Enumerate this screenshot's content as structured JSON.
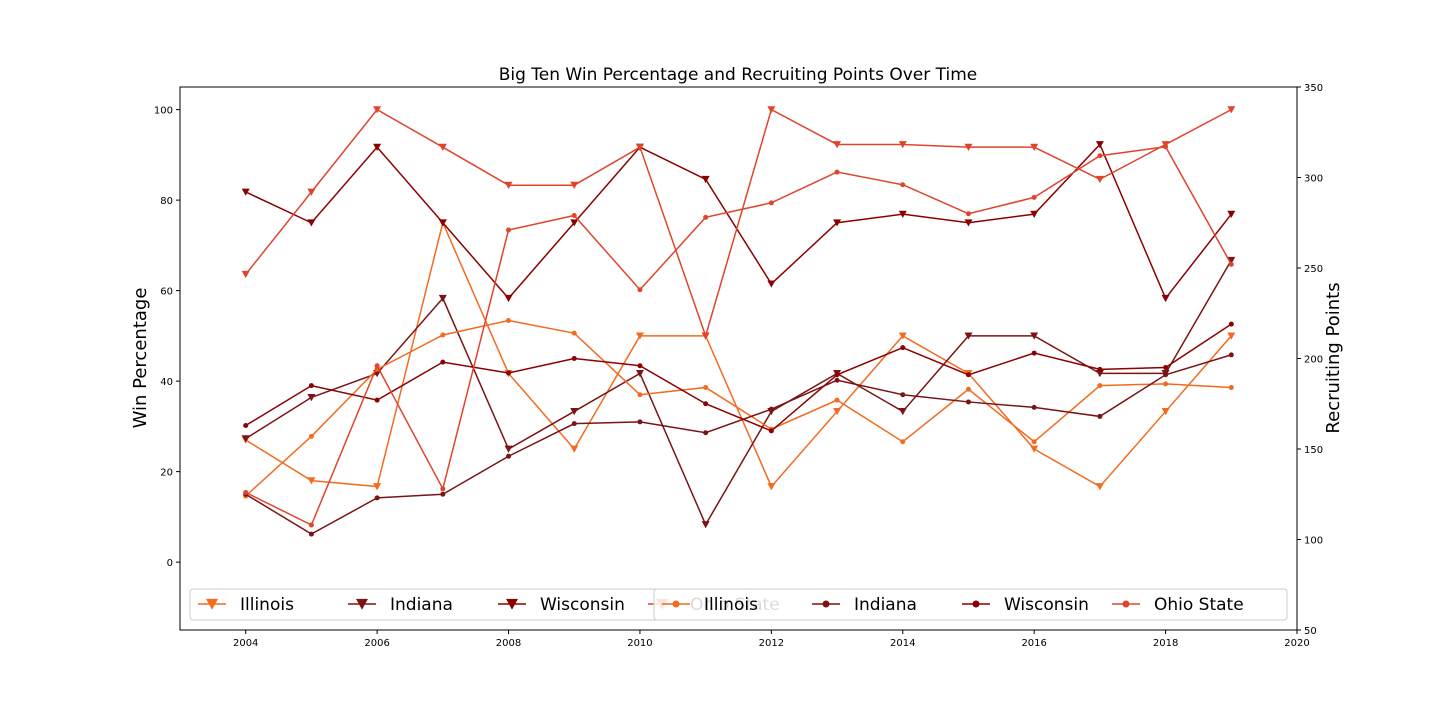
{
  "chart_data": {
    "type": "line",
    "title": "Big Ten Win Percentage and Recruiting Points Over Time",
    "xlabel": "",
    "ylabel_left": "Win Percentage",
    "ylabel_right": "Recruiting Points",
    "xlim": [
      2003,
      2020
    ],
    "ylim_left": [
      -15,
      105
    ],
    "ylim_right": [
      50,
      350
    ],
    "x_ticks": [
      2004,
      2006,
      2008,
      2010,
      2012,
      2014,
      2016,
      2018,
      2020
    ],
    "y_ticks_left": [
      0,
      20,
      40,
      60,
      80,
      100
    ],
    "y_ticks_right": [
      50,
      100,
      150,
      200,
      250,
      300,
      350
    ],
    "grid": false,
    "legend_left_placement": "lower-left",
    "legend_right_placement": "lower-right",
    "x": [
      2004,
      2005,
      2006,
      2007,
      2008,
      2009,
      2010,
      2011,
      2012,
      2013,
      2014,
      2015,
      2016,
      2017,
      2018,
      2019
    ],
    "win_series": [
      {
        "name": "Illinois",
        "color": "#f26b21",
        "values": [
          27,
          18,
          16.7,
          75,
          41.7,
          25,
          50,
          50,
          16.7,
          33.3,
          50,
          41.7,
          25,
          16.7,
          33.3,
          50
        ]
      },
      {
        "name": "Indiana",
        "color": "#7b1414",
        "values": [
          27.3,
          36.4,
          41.7,
          58.3,
          25,
          33.3,
          41.7,
          8.3,
          33.3,
          41.7,
          33.3,
          50,
          50,
          41.7,
          41.7,
          66.7
        ]
      },
      {
        "name": "Wisconsin",
        "color": "#8b0000",
        "values": [
          81.8,
          75,
          91.7,
          75,
          58.3,
          75,
          91.7,
          84.6,
          61.5,
          75,
          76.9,
          75,
          76.9,
          92.3,
          58.3,
          76.9
        ]
      },
      {
        "name": "Ohio State",
        "color": "#e0452c",
        "values": [
          63.6,
          81.8,
          100,
          91.7,
          83.3,
          83.3,
          91.7,
          50,
          100,
          92.3,
          92.3,
          91.7,
          91.7,
          84.6,
          92.3,
          100
        ]
      }
    ],
    "recruiting_series": [
      {
        "name": "Illinois",
        "color": "#f26b21",
        "values": [
          124,
          157,
          194,
          213,
          221,
          214,
          180,
          184,
          161,
          177,
          154,
          183,
          154,
          185,
          186,
          184
        ]
      },
      {
        "name": "Indiana",
        "color": "#7b1414",
        "values": [
          125,
          103,
          123,
          125,
          146,
          164,
          165,
          159,
          172,
          188,
          180,
          176,
          173,
          168,
          191,
          202
        ]
      },
      {
        "name": "Wisconsin",
        "color": "#8b0000",
        "values": [
          163,
          185,
          177,
          198,
          192,
          200,
          196,
          175,
          160,
          191,
          206,
          191,
          203,
          194,
          195,
          219
        ]
      },
      {
        "name": "Ohio State",
        "color": "#e0452c",
        "values": [
          126,
          108,
          196,
          128,
          271,
          279,
          238,
          278,
          286,
          303,
          296,
          280,
          289,
          312,
          317,
          252
        ]
      }
    ]
  }
}
